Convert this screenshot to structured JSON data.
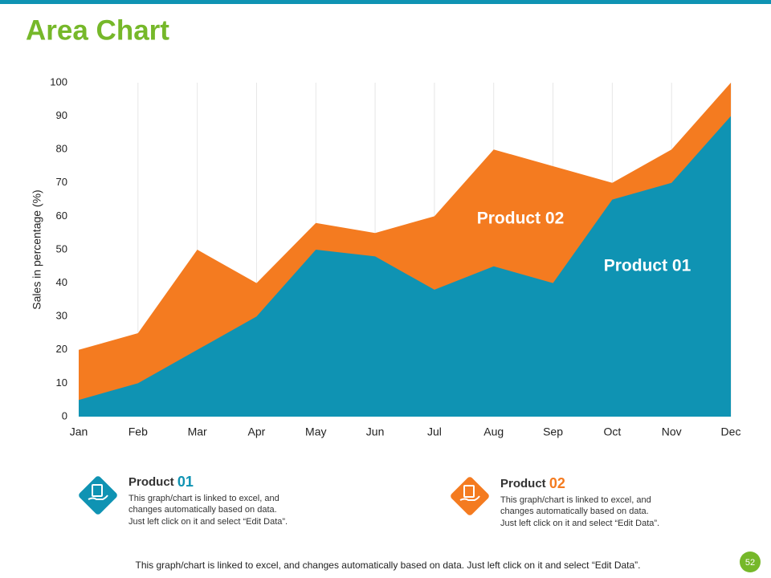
{
  "title": "Area Chart",
  "chart_data": {
    "type": "area",
    "y_label": "Sales in percentage (%)",
    "categories": [
      "Jan",
      "Feb",
      "Mar",
      "Apr",
      "May",
      "Jun",
      "Jul",
      "Aug",
      "Sep",
      "Oct",
      "Nov",
      "Dec"
    ],
    "series": [
      {
        "name": "Product 02",
        "color": "#f47b20",
        "values": [
          20,
          25,
          50,
          40,
          58,
          55,
          60,
          80,
          75,
          70,
          80,
          100
        ]
      },
      {
        "name": "Product 01",
        "color": "#0f93b3",
        "values": [
          5,
          10,
          20,
          30,
          50,
          48,
          38,
          45,
          40,
          65,
          70,
          90
        ]
      }
    ],
    "ylim": [
      0,
      100
    ],
    "yticks": [
      0,
      10,
      20,
      30,
      40,
      50,
      60,
      70,
      80,
      90,
      100
    ],
    "grid": true
  },
  "legend": [
    {
      "label": "Product",
      "number": "01",
      "lines": [
        "This graph/chart is linked to excel, and",
        "changes automatically based on data.",
        "Just left click on it and select “Edit Data”."
      ]
    },
    {
      "label": "Product",
      "number": "02",
      "lines": [
        "This graph/chart is linked to excel, and",
        "changes automatically based on data.",
        "Just left click on it and select “Edit Data”."
      ]
    }
  ],
  "footer": "This graph/chart is linked to excel, and changes automatically based on data. Just left click on it and select “Edit Data”.",
  "page_number": "52"
}
